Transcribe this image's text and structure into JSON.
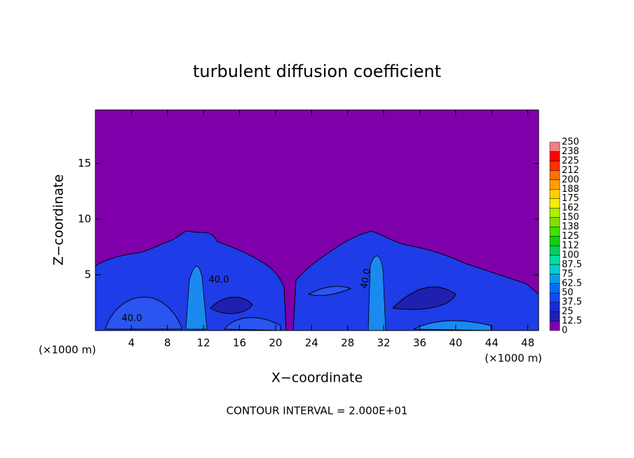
{
  "chart_data": {
    "type": "contour",
    "title": "turbulent diffusion coefficient",
    "xlabel": "X−coordinate",
    "ylabel": "Z−coordinate",
    "x_unit_left": "(×1000 m)",
    "x_unit_right": "(×1000 m)",
    "footnote": "CONTOUR INTERVAL = 2.000E+01",
    "xlim": [
      0,
      49.2
    ],
    "xticks": [
      4,
      8,
      12,
      16,
      20,
      24,
      28,
      32,
      36,
      40,
      44,
      48
    ],
    "ylim": [
      0,
      19.8
    ],
    "yticks": [
      5,
      10,
      15
    ],
    "contour_labels": [
      "40.0",
      "40.0",
      "40.0"
    ],
    "colorbar": {
      "levels": [
        0,
        12.5,
        25,
        37.5,
        50,
        62.5,
        75,
        87.5,
        100,
        {
          "value": 112.5,
          "label": "112"
        },
        125,
        {
          "value": 137.5,
          "label": "138"
        },
        150,
        {
          "value": 162.5,
          "label": "162"
        },
        175,
        {
          "value": 187.5,
          "label": "188"
        },
        200,
        {
          "value": 212.5,
          "label": "212"
        },
        225,
        {
          "value": 237.5,
          "label": "238"
        },
        250
      ],
      "colors": [
        "#7f00aa",
        "#2020b0",
        "#1a2ad8",
        "#1848f0",
        "#0070f0",
        "#00a0e8",
        "#00d0d0",
        "#00e0a0",
        "#00d060",
        "#10d010",
        "#40e000",
        "#80e000",
        "#b0f000",
        "#f0f000",
        "#ffd000",
        "#ffa000",
        "#ff7000",
        "#ff3000",
        "#ff0000",
        "#f08080"
      ]
    }
  }
}
